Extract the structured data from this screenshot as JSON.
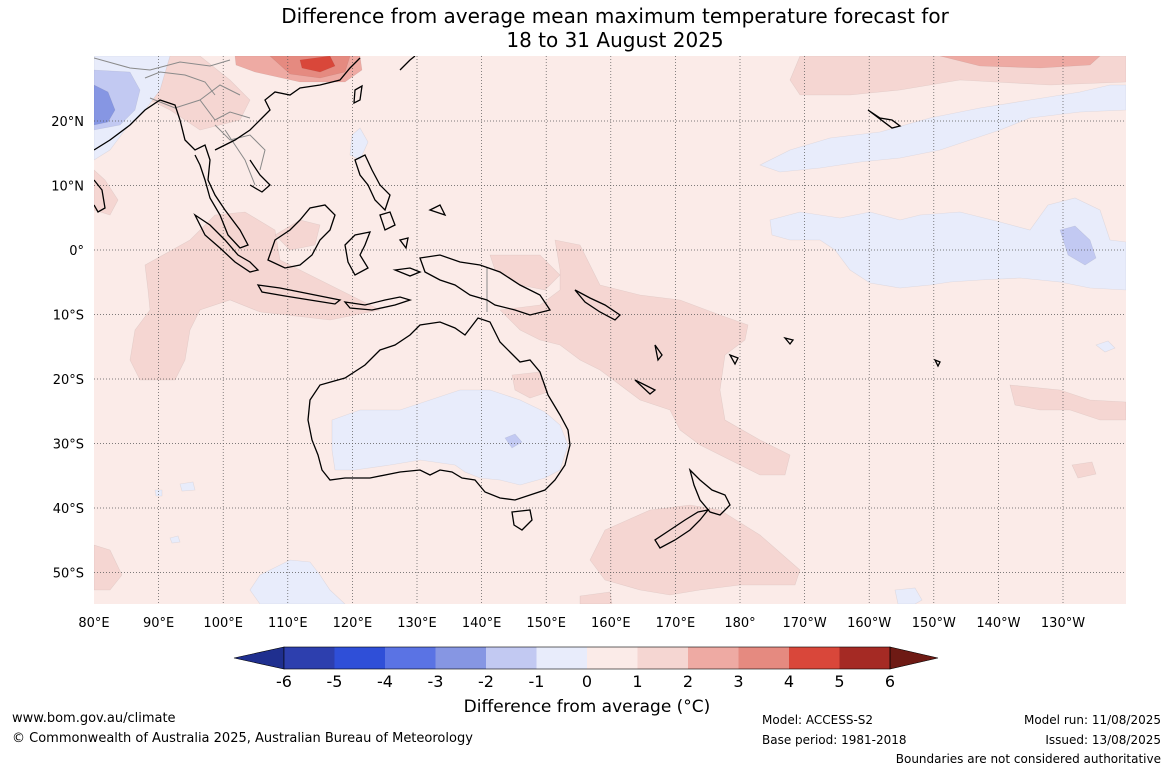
{
  "title": {
    "line1": "Difference from average mean maximum temperature forecast for",
    "line2": "18 to 31 August 2025"
  },
  "map": {
    "lon_labels": [
      "80°E",
      "90°E",
      "100°E",
      "110°E",
      "120°E",
      "130°E",
      "140°E",
      "150°E",
      "160°E",
      "170°E",
      "180°",
      "170°W",
      "160°W",
      "150°W",
      "140°W",
      "130°W"
    ],
    "lat_labels": [
      "20°N",
      "10°N",
      "0°",
      "10°S",
      "20°S",
      "30°S",
      "40°S",
      "50°S"
    ],
    "colors": {
      "anom_0_1": "#fbebe8",
      "anom_1_2": "#f5d6d2",
      "anom_2_3": "#eeaaa3",
      "anom_3_4": "#e58a80",
      "anom_4_5": "#d9473a",
      "anom_m1_0": "#e8ecfb",
      "anom_m2_m1": "#c2c9f2",
      "anom_m3_m2": "#8696e3",
      "coast": "#000000",
      "border": "#8a8a8a"
    }
  },
  "legend": {
    "ticks": [
      "-6",
      "-5",
      "-4",
      "-3",
      "-2",
      "-1",
      "0",
      "1",
      "2",
      "3",
      "4",
      "5",
      "6"
    ],
    "colors": [
      "#1f2f8f",
      "#2d3fae",
      "#2f4fd8",
      "#5a73e4",
      "#8696e3",
      "#c2c9f2",
      "#e8ecfb",
      "#fbebe8",
      "#f5d6d2",
      "#eeaaa3",
      "#e58a80",
      "#d9473a",
      "#a52a24",
      "#6e1a14"
    ],
    "title": "Difference from average (°C)"
  },
  "footer": {
    "website": "www.bom.gov.au/climate",
    "copyright": "© Commonwealth of Australia 2025, Australian Bureau of Meteorology",
    "model": "Model: ACCESS-S2",
    "base_period": "Base period: 1981-2018",
    "model_run": "Model run: 11/08/2025",
    "issued": "Issued: 13/08/2025",
    "disclaimer": "Boundaries are not considered authoritative"
  }
}
